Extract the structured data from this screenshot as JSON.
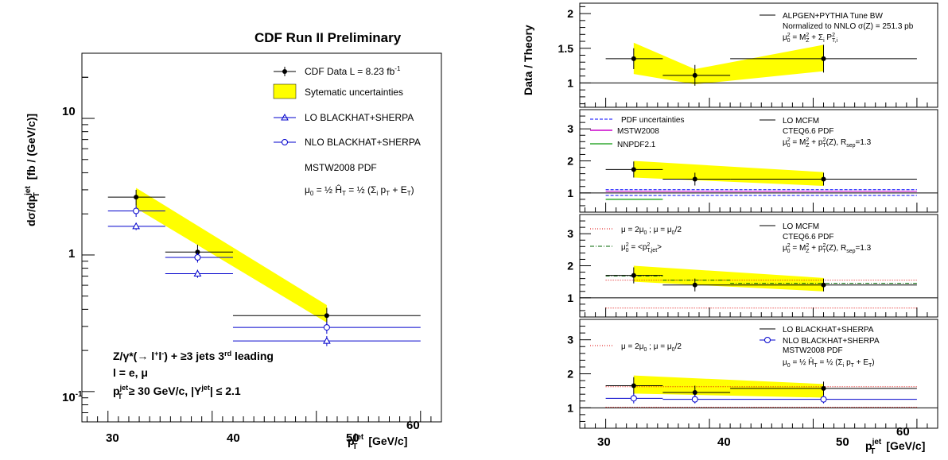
{
  "left": {
    "title": "CDF Run II Preliminary",
    "ylabel": "dσ/dp_T^jet [fb / (GeV/c)]",
    "xlabel": "p_T^jet  [GeV/c]",
    "x_ticks": [
      "30",
      "40",
      "50",
      "60"
    ],
    "y_ticks": [
      "10⁻¹",
      "1",
      "10"
    ],
    "legend": {
      "data": "CDF Data  L = 8.23 fb⁻¹",
      "syst": "Sytematic uncertainties",
      "lo": "LO BLACKHAT+SHERPA",
      "nlo": "NLO BLACKHAT+SHERPA",
      "pdf": "MSTW2008 PDF",
      "scale": "μ₀ = ½ Ĥ_T = ½ (Σᵢ p_Tⁱ + E_T^Z)"
    },
    "selection": {
      "line1": "Z/γ*(→ l⁺l⁻) + ≥3 jets 3ʳᵈ leading",
      "line2": "l = e, μ",
      "line3": "p_T^jet ≥ 30 GeV/c, |Y^jet| ≤ 2.1"
    }
  },
  "right": {
    "ylabel": "Data / Theory",
    "xlabel": "p_T^jet  [GeV/c]",
    "x_ticks": [
      "30",
      "40",
      "50",
      "60"
    ],
    "panel1": {
      "y_ticks": [
        "1",
        "1.5",
        "2"
      ],
      "legend": [
        "ALPGEN+PYTHIA Tune BW",
        "Normalized to NNLO σ(Z) = 251.3 pb",
        "μ₀² = M_Z² + Σᵢ p²_T,i"
      ]
    },
    "panel2": {
      "y_ticks": [
        "1",
        "2",
        "3"
      ],
      "legend_left": [
        "PDF uncertainties",
        "MSTW2008",
        "NNPDF2.1"
      ],
      "legend_right": [
        "LO MCFM",
        "CTEQ6.6 PDF",
        "μ₀² = M_Z² + p_T²(Z), R_sep=1.3"
      ]
    },
    "panel3": {
      "y_ticks": [
        "1",
        "2",
        "3"
      ],
      "legend_left": [
        "μ = 2μ₀ ; μ = μ₀/2",
        "μ₀² = <p²_T,jet>"
      ],
      "legend_right": [
        "LO MCFM",
        "CTEQ6.6 PDF",
        "μ₀² = M_Z² + p_T²(Z), R_sep=1.3"
      ]
    },
    "panel4": {
      "y_ticks": [
        "1",
        "2",
        "3"
      ],
      "legend_left": [
        "μ = 2μ₀ ; μ = μ₀/2"
      ],
      "legend_right": [
        "LO BLACKHAT+SHERPA",
        "NLO BLACKHAT+SHERPA",
        "MSTW2008 PDF",
        "μ₀ = ½ Ĥ_T = ½ (Σᵢ p_Tⁱ + E_T^Z)"
      ]
    }
  },
  "chart_data": [
    {
      "type": "scatter",
      "title": "CDF Run II Preliminary",
      "xlabel": "p_T^jet [GeV/c]",
      "ylabel": "dσ/dp_T^jet [fb / (GeV/c)]",
      "xlim": [
        27.5,
        62
      ],
      "ylim": [
        0.06,
        30
      ],
      "yscale": "log",
      "x_bin_edges": [
        [
          30,
          35.5
        ],
        [
          35.5,
          42
        ],
        [
          42,
          60
        ]
      ],
      "series": [
        {
          "name": "CDF Data  L = 8.23 fb⁻¹",
          "x": [
            32.7,
            38.6,
            51.0
          ],
          "y": [
            2.65,
            1.05,
            0.36
          ],
          "yerr": [
            0.35,
            0.14,
            0.05
          ]
        },
        {
          "name": "LO BLACKHAT+SHERPA",
          "x": [
            32.7,
            38.6,
            51.0
          ],
          "y": [
            1.62,
            0.73,
            0.235
          ],
          "yerr": [
            0.1,
            0.05,
            0.02
          ]
        },
        {
          "name": "NLO BLACKHAT+SHERPA",
          "x": [
            32.7,
            38.6,
            51.0
          ],
          "y": [
            2.1,
            0.96,
            0.295
          ],
          "yerr": [
            0.2,
            0.08,
            0.03
          ]
        },
        {
          "name": "Sytematic uncertainties",
          "x": [
            32.7,
            51.0
          ],
          "y_low": [
            2.2,
            0.32
          ],
          "y_high": [
            3.1,
            0.43
          ]
        }
      ]
    },
    {
      "type": "scatter",
      "ylabel": "Data / Theory",
      "xlim": [
        27.5,
        62
      ],
      "ylim": [
        0.65,
        2.15
      ],
      "series": [
        {
          "name": "ALPGEN+PYTHIA Tune BW",
          "x": [
            32.7,
            38.6,
            51.0
          ],
          "y": [
            1.35,
            1.11,
            1.35
          ],
          "yerr": [
            0.15,
            0.15,
            0.2
          ]
        },
        {
          "name": "band",
          "x": [
            32.7,
            38.6,
            51.0
          ],
          "y_low": [
            1.13,
            0.98,
            1.17
          ],
          "y_high": [
            1.58,
            1.2,
            1.55
          ]
        }
      ]
    },
    {
      "type": "scatter",
      "ylim": [
        0.4,
        3.6
      ],
      "series": [
        {
          "name": "LO MCFM",
          "x": [
            32.7,
            38.6,
            51.0
          ],
          "y": [
            1.73,
            1.43,
            1.43
          ],
          "yerr": [
            0.25,
            0.2,
            0.2
          ]
        },
        {
          "name": "band",
          "x": [
            32.7,
            51.0
          ],
          "y_low": [
            1.48,
            1.22
          ],
          "y_high": [
            2.0,
            1.65
          ]
        },
        {
          "name": "PDF uncertainties",
          "x_range": [
            30,
            60
          ],
          "y": [
            1.1,
            0.92
          ]
        },
        {
          "name": "MSTW2008",
          "x_range": [
            30,
            60
          ],
          "y": [
            1.0
          ]
        },
        {
          "name": "NNPDF2.1",
          "x_range": [
            30,
            35.5
          ],
          "y": [
            0.8
          ]
        }
      ]
    },
    {
      "type": "scatter",
      "ylim": [
        0.4,
        3.6
      ],
      "series": [
        {
          "name": "LO MCFM",
          "x": [
            32.7,
            38.6,
            51.0
          ],
          "y": [
            1.7,
            1.4,
            1.4
          ],
          "yerr": [
            0.25,
            0.2,
            0.2
          ]
        },
        {
          "name": "band",
          "x": [
            32.7,
            51.0
          ],
          "y_low": [
            1.5,
            1.2
          ],
          "y_high": [
            2.0,
            1.62
          ]
        },
        {
          "name": "μ = 2μ₀ ; μ = μ₀/2",
          "x_range": [
            30,
            60
          ],
          "y": [
            1.55,
            0.68
          ]
        },
        {
          "name": "μ₀² = <p²_T,jet>",
          "x": [
            30,
            35.5,
            42,
            60
          ],
          "y": [
            1.68,
            1.55,
            1.45,
            1.4
          ]
        }
      ]
    },
    {
      "type": "scatter",
      "xlabel": "p_T^jet [GeV/c]",
      "ylim": [
        0.4,
        3.6
      ],
      "series": [
        {
          "name": "LO BLACKHAT+SHERPA",
          "x": [
            32.7,
            38.6,
            51.0
          ],
          "y": [
            1.65,
            1.45,
            1.57
          ],
          "yerr": [
            0.25,
            0.2,
            0.2
          ]
        },
        {
          "name": "NLO BLACKHAT+SHERPA",
          "x": [
            32.7,
            38.6,
            51.0
          ],
          "y": [
            1.28,
            1.25,
            1.25
          ],
          "yerr": [
            0.15,
            0.12,
            0.12
          ]
        },
        {
          "name": "band",
          "x": [
            32.7,
            51.0
          ],
          "y_low": [
            1.42,
            1.3
          ],
          "y_high": [
            1.95,
            1.7
          ]
        },
        {
          "name": "μ = 2μ₀ ; μ = μ₀/2",
          "x_range": [
            30,
            60
          ],
          "y": [
            1.62,
            1.02
          ]
        }
      ]
    }
  ]
}
